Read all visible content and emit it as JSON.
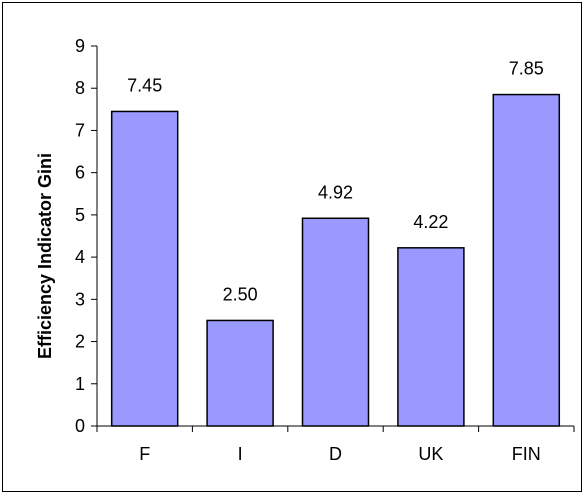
{
  "chart_data": {
    "type": "bar",
    "categories": [
      "F",
      "I",
      "D",
      "UK",
      "FIN"
    ],
    "values": [
      7.45,
      2.5,
      4.92,
      4.22,
      7.85
    ],
    "data_labels": [
      "7.45",
      "2.50",
      "4.92",
      "4.22",
      "7.85"
    ],
    "title": "",
    "xlabel": "",
    "ylabel": "Efficiency Indicator Gini",
    "ylim": [
      0,
      9
    ],
    "yticks": [
      0,
      1,
      2,
      3,
      4,
      5,
      6,
      7,
      8,
      9
    ],
    "grid": false,
    "legend": "none",
    "bar_color": "#9999ff",
    "bar_edge_color": "#000000"
  }
}
